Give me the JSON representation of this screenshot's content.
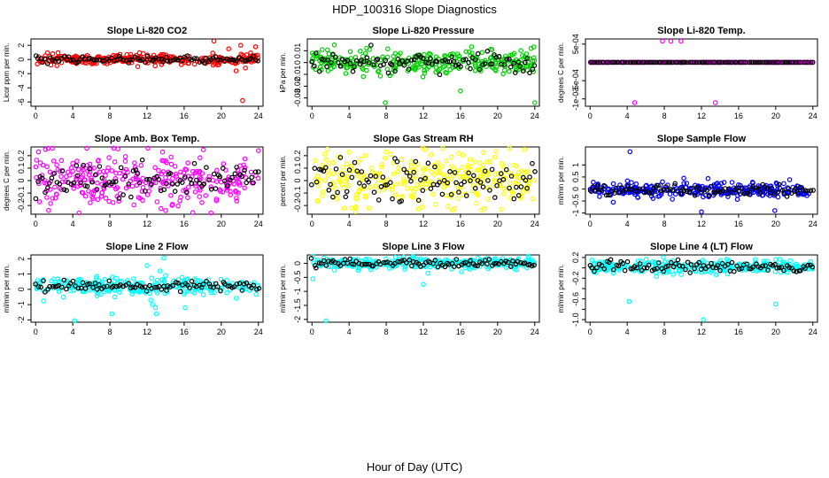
{
  "title": "HDP_100316  Slope Diagnostics",
  "xlabel": "Hour of Day (UTC)",
  "colors": {
    "red": "#ff0000",
    "green": "#00cd00",
    "magenta": "#ff00ff",
    "yellow": "#ffff00",
    "blue": "#0000ff",
    "cyan": "#00ffff",
    "black": "#000000"
  },
  "chart_data": [
    {
      "type": "scatter",
      "title": "Slope Li-820 CO2",
      "ylabel": "Licor ppm per min.",
      "xlim": [
        -0.5,
        24.5
      ],
      "ylim": [
        -6.6,
        2.9
      ],
      "xticks": [
        0,
        4,
        8,
        12,
        16,
        20,
        24
      ],
      "yticks": [
        -6,
        -4,
        -2,
        0,
        2
      ],
      "color": "red",
      "center": 0,
      "spread": 0.35,
      "black_spread": 0.25,
      "outliers": [
        [
          19.2,
          2.6
        ],
        [
          22.3,
          -5.8
        ],
        [
          11.0,
          -1.0
        ],
        [
          21.6,
          -1.6
        ],
        [
          22.1,
          2.0
        ],
        [
          23.7,
          1.8
        ],
        [
          20.8,
          1.5
        ],
        [
          22.6,
          -1.2
        ]
      ]
    },
    {
      "type": "scatter",
      "title": "Slope Li-820 Pressure",
      "ylabel": "kPa per min.",
      "xlim": [
        -0.5,
        24.5
      ],
      "ylim": [
        -0.037,
        0.02
      ],
      "xticks": [
        0,
        4,
        8,
        12,
        16,
        20,
        24
      ],
      "yticks": [
        -0.03,
        -0.02,
        -0.01,
        0.0,
        0.01
      ],
      "color": "green",
      "center": 0.0,
      "spread": 0.0045,
      "black_spread": 0.004,
      "outliers": [
        [
          7.9,
          -0.034
        ],
        [
          16.0,
          -0.024
        ],
        [
          24.0,
          -0.034
        ],
        [
          2.4,
          0.015
        ],
        [
          23.6,
          0.012
        ],
        [
          1.1,
          0.011
        ],
        [
          6.2,
          0.011
        ]
      ]
    },
    {
      "type": "scatter",
      "title": "Slope Li-820 Temp.",
      "ylabel": "degrees C per min.",
      "xlim": [
        -0.5,
        24.5
      ],
      "ylim": [
        -0.0012,
        0.00064
      ],
      "xticks": [
        0,
        4,
        8,
        12,
        16,
        20,
        24
      ],
      "yticks": [
        0.0005,
        -0.0005,
        -0.001
      ],
      "ytick_labels": [
        "5e-04",
        "-5e-04",
        "-1e-03"
      ],
      "color": "magenta",
      "center": 0.0,
      "spread": 0.0,
      "black_spread": 0.0,
      "outliers": [
        [
          7.8,
          0.00058
        ],
        [
          8.7,
          0.00058
        ],
        [
          9.8,
          0.00058
        ],
        [
          4.8,
          -0.0011
        ],
        [
          13.5,
          -0.0011
        ]
      ]
    },
    {
      "type": "scatter",
      "title": "Slope Amb. Box Temp.",
      "ylabel": "degrees C per min.",
      "xlim": [
        -0.5,
        24.5
      ],
      "ylim": [
        -0.27,
        0.27
      ],
      "xticks": [
        0,
        4,
        8,
        12,
        16,
        20,
        24
      ],
      "yticks": [
        -0.2,
        -0.1,
        0.0,
        0.1,
        0.2
      ],
      "color": "magenta",
      "center": 0.0,
      "spread": 0.11,
      "black_spread": 0.08,
      "outliers": [
        [
          0.3,
          0.23
        ],
        [
          12.1,
          0.26
        ],
        [
          24.0,
          0.24
        ],
        [
          14.0,
          -0.24
        ]
      ]
    },
    {
      "type": "scatter",
      "title": "Slope Gas Stream RH",
      "ylabel": "percent per min.",
      "xlim": [
        -0.5,
        24.5
      ],
      "ylim": [
        -0.27,
        0.27
      ],
      "xticks": [
        0,
        4,
        8,
        12,
        16,
        20,
        24
      ],
      "yticks": [
        -0.2,
        -0.1,
        0.0,
        0.1,
        0.2
      ],
      "color": "yellow",
      "center": 0.0,
      "spread": 0.1,
      "black_spread": 0.09,
      "outliers": [
        [
          12.2,
          0.25
        ],
        [
          22.9,
          0.25
        ],
        [
          8.0,
          0.23
        ],
        [
          4.7,
          -0.25
        ],
        [
          20.4,
          -0.23
        ]
      ]
    },
    {
      "type": "scatter",
      "title": "Slope Sample Flow",
      "ylabel": "ml/min per min.",
      "xlim": [
        -0.5,
        24.5
      ],
      "ylim": [
        -1.05,
        1.75
      ],
      "xticks": [
        0,
        4,
        8,
        12,
        16,
        20,
        24
      ],
      "yticks": [
        -1.0,
        -0.5,
        0.0,
        0.5,
        1.0
      ],
      "color": "blue",
      "center": -0.05,
      "spread": 0.15,
      "black_spread": 0.1,
      "outliers": [
        [
          4.3,
          1.55
        ],
        [
          12.0,
          -0.95
        ],
        [
          19.9,
          -0.9
        ],
        [
          2.5,
          -0.55
        ],
        [
          10.1,
          0.45
        ]
      ]
    },
    {
      "type": "scatter",
      "title": "Slope Line 2 Flow",
      "ylabel": "ml/min per min.",
      "xlim": [
        -0.5,
        24.5
      ],
      "ylim": [
        -2.15,
        2.25
      ],
      "xticks": [
        0,
        4,
        8,
        12,
        16,
        20,
        24
      ],
      "yticks": [
        -2,
        -1,
        0,
        1,
        2
      ],
      "color": "cyan",
      "center": 0.2,
      "spread": 0.28,
      "black_spread": 0.15,
      "outliers": [
        [
          4.2,
          -2.05
        ],
        [
          8.2,
          -1.6
        ],
        [
          12.0,
          1.55
        ],
        [
          13.0,
          -1.6
        ],
        [
          13.8,
          2.05
        ],
        [
          12.6,
          -1.0
        ],
        [
          14.0,
          0.9
        ],
        [
          13.4,
          1.2
        ],
        [
          12.9,
          -1.2
        ],
        [
          16.1,
          -1.2
        ],
        [
          13.1,
          0.6
        ],
        [
          12.4,
          -0.7
        ]
      ]
    },
    {
      "type": "scatter",
      "title": "Slope Line 3 Flow",
      "ylabel": "ml/min per min.",
      "xlim": [
        -0.5,
        24.5
      ],
      "ylim": [
        -2.1,
        0.3
      ],
      "xticks": [
        0,
        4,
        8,
        12,
        16,
        20,
        24
      ],
      "yticks": [
        -2.0,
        -1.5,
        -1.0,
        -0.5,
        0.0
      ],
      "color": "cyan",
      "center": 0.0,
      "spread": 0.09,
      "black_spread": 0.07,
      "outliers": [
        [
          1.5,
          -2.05
        ],
        [
          0.1,
          0.25
        ],
        [
          0.1,
          -0.55
        ],
        [
          12.5,
          -0.35
        ],
        [
          12.0,
          -0.75
        ],
        [
          5.0,
          -0.25
        ],
        [
          16.1,
          -0.3
        ]
      ]
    },
    {
      "type": "scatter",
      "title": "Slope Line 4 (LT) Flow",
      "ylabel": "ml/min per min.",
      "xlim": [
        -0.5,
        24.5
      ],
      "ylim": [
        -1.05,
        0.25
      ],
      "xticks": [
        0,
        4,
        8,
        12,
        16,
        20,
        24
      ],
      "yticks": [
        -1.0,
        -0.8,
        -0.6,
        -0.4,
        -0.2,
        0.0,
        0.2
      ],
      "ytick_labels": [
        "-1.0",
        "",
        "-0.6",
        "",
        "-0.2",
        "",
        "0.2"
      ],
      "color": "cyan",
      "center": 0.02,
      "spread": 0.06,
      "black_spread": 0.05,
      "outliers": [
        [
          4.2,
          -0.65
        ],
        [
          12.2,
          -1.0
        ],
        [
          20.0,
          -0.7
        ],
        [
          0.2,
          0.15
        ],
        [
          7.9,
          0.2
        ],
        [
          2.5,
          -0.1
        ]
      ]
    }
  ]
}
